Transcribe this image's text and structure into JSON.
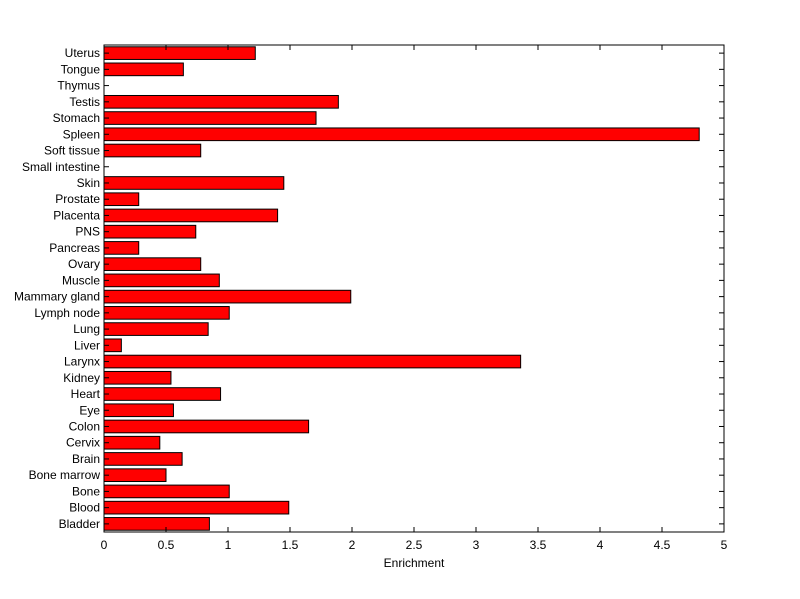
{
  "chart_data": {
    "type": "bar",
    "orientation": "horizontal",
    "xlabel": "Enrichment",
    "ylabel": "",
    "xlim": [
      0,
      5
    ],
    "xticks": [
      "0",
      "0.5",
      "1",
      "1.5",
      "2",
      "2.5",
      "3",
      "3.5",
      "4",
      "4.5",
      "5"
    ],
    "grid": false,
    "bar_color": "#ff0000",
    "categories": [
      "Uterus",
      "Tongue",
      "Thymus",
      "Testis",
      "Stomach",
      "Spleen",
      "Soft tissue",
      "Small intestine",
      "Skin",
      "Prostate",
      "Placenta",
      "PNS",
      "Pancreas",
      "Ovary",
      "Muscle",
      "Mammary gland",
      "Lymph node",
      "Lung",
      "Liver",
      "Larynx",
      "Kidney",
      "Heart",
      "Eye",
      "Colon",
      "Cervix",
      "Brain",
      "Bone marrow",
      "Bone",
      "Blood",
      "Bladder"
    ],
    "values": [
      1.22,
      0.64,
      0,
      1.89,
      1.71,
      4.8,
      0.78,
      0,
      1.45,
      0.28,
      1.4,
      0.74,
      0.28,
      0.78,
      0.93,
      1.99,
      1.01,
      0.84,
      0.14,
      3.36,
      0.54,
      0.94,
      0.56,
      1.65,
      0.45,
      0.63,
      0.5,
      1.01,
      1.49,
      0.85
    ]
  }
}
